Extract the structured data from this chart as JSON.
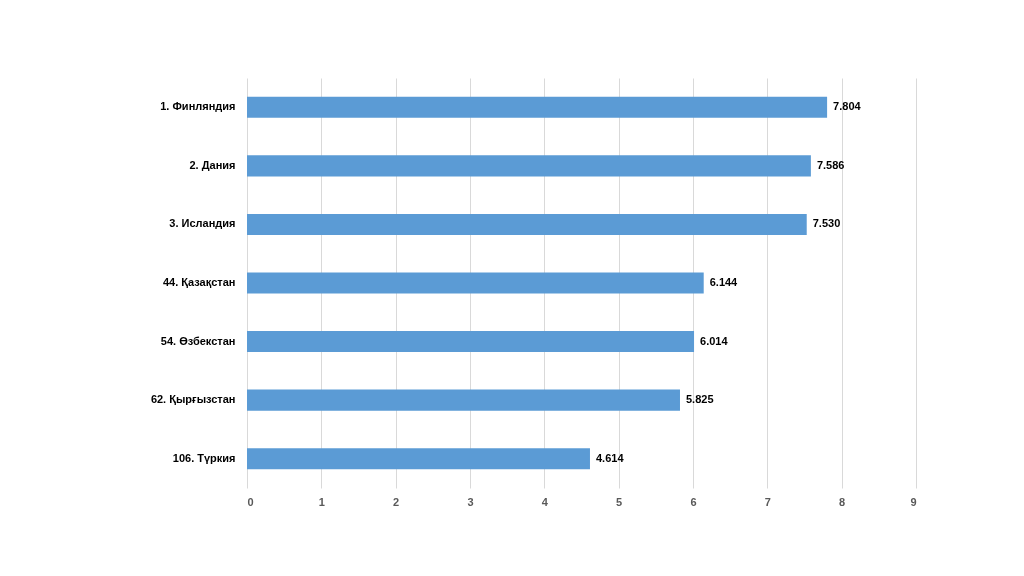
{
  "chart_data": {
    "type": "bar",
    "orientation": "horizontal",
    "categories": [
      "1. Финляндия",
      "2. Дания",
      "3. Исландия",
      "44. Қазақстан",
      "54. Өзбекстан",
      "62. Қырғызстан",
      "106. Түркия"
    ],
    "values": [
      7.804,
      7.586,
      7.53,
      6.144,
      6.014,
      5.825,
      4.614
    ],
    "value_labels": [
      "7.804",
      "7.586",
      "7.530",
      "6.144",
      "6.014",
      "5.825",
      "4.614"
    ],
    "color": "#5b9bd5",
    "xlim": [
      0,
      9
    ],
    "xticks": [
      0,
      1,
      2,
      3,
      4,
      5,
      6,
      7,
      8,
      9
    ],
    "grid": "x"
  }
}
